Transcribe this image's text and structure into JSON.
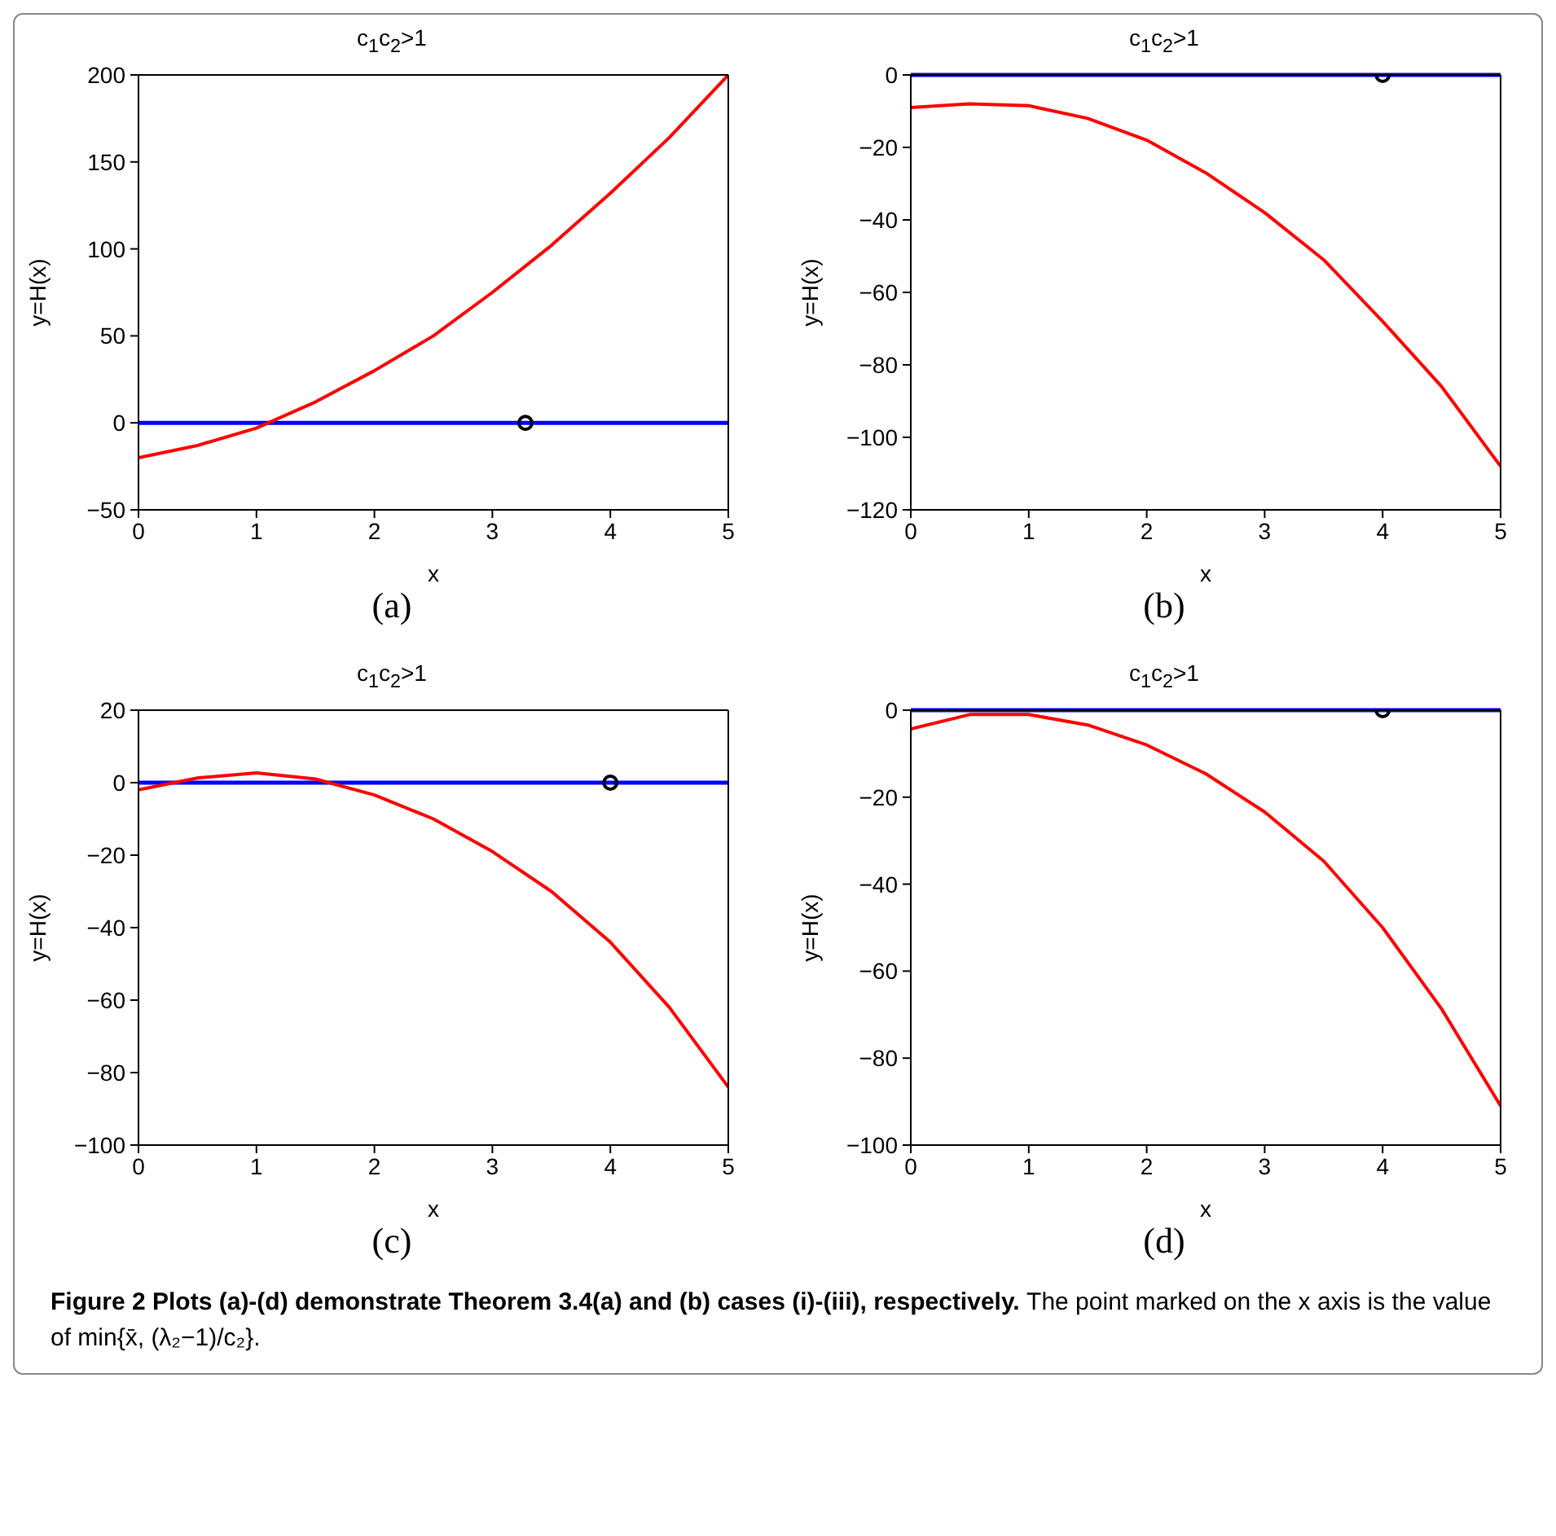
{
  "chart_data": [
    {
      "type": "line",
      "title": "c$_{1}$c$_{2}$>1",
      "subtitle": "(a)",
      "xlabel": "x",
      "ylabel": "y=H(x)",
      "xlim": [
        0,
        5
      ],
      "xticks": [
        0,
        1,
        2,
        3,
        4,
        5
      ],
      "ylim": [
        -50,
        200
      ],
      "yticks": [
        -50,
        0,
        50,
        100,
        150,
        200
      ],
      "grid": false,
      "ref_lines": [
        {
          "axis": "y",
          "value": 0,
          "color": "#0000ff"
        }
      ],
      "series": [
        {
          "type": "line",
          "color": "#ff0000",
          "marker": "none",
          "x": [
            0,
            0.5,
            1,
            1.5,
            2,
            2.5,
            3,
            3.5,
            4,
            4.5,
            5
          ],
          "values": [
            -20,
            -13,
            -3,
            12,
            30,
            50,
            75,
            102,
            132,
            164,
            200
          ]
        },
        {
          "type": "scatter",
          "color": "#000000",
          "marker": "circle",
          "x": [
            3.28
          ],
          "values": [
            0
          ]
        }
      ]
    },
    {
      "type": "line",
      "title": "c$_{1}$c$_{2}$>1",
      "subtitle": "(b)",
      "xlabel": "x",
      "ylabel": "y=H(x)",
      "xlim": [
        0,
        5
      ],
      "xticks": [
        0,
        1,
        2,
        3,
        4,
        5
      ],
      "ylim": [
        -120,
        0
      ],
      "yticks": [
        -120,
        -100,
        -80,
        -60,
        -40,
        -20,
        0
      ],
      "grid": false,
      "ref_lines": [
        {
          "axis": "y",
          "value": 0,
          "color": "#0000ff"
        }
      ],
      "series": [
        {
          "type": "line",
          "color": "#ff0000",
          "marker": "none",
          "x": [
            0,
            0.5,
            1,
            1.5,
            2,
            2.5,
            3,
            3.5,
            4,
            4.5,
            5
          ],
          "values": [
            -9,
            -8,
            -8.5,
            -12,
            -18,
            -27,
            -38,
            -51,
            -68,
            -86,
            -108
          ]
        },
        {
          "type": "scatter",
          "color": "#000000",
          "marker": "circle",
          "x": [
            4
          ],
          "values": [
            0
          ]
        }
      ]
    },
    {
      "type": "line",
      "title": "c$_{1}$c$_{2}$>1",
      "subtitle": "(c)",
      "xlabel": "x",
      "ylabel": "y=H(x)",
      "xlim": [
        0,
        5
      ],
      "xticks": [
        0,
        1,
        2,
        3,
        4,
        5
      ],
      "ylim": [
        -100,
        20
      ],
      "yticks": [
        -100,
        -80,
        -60,
        -40,
        -20,
        0,
        20
      ],
      "grid": false,
      "ref_lines": [
        {
          "axis": "y",
          "value": 0,
          "color": "#0000ff"
        }
      ],
      "series": [
        {
          "type": "line",
          "color": "#ff0000",
          "marker": "none",
          "x": [
            0,
            0.5,
            1,
            1.5,
            2,
            2.5,
            3,
            3.5,
            4,
            4.5,
            5
          ],
          "values": [
            -2,
            1.3,
            2.7,
            1,
            -3.4,
            -10,
            -19,
            -30,
            -44,
            -62,
            -84
          ]
        },
        {
          "type": "scatter",
          "color": "#000000",
          "marker": "circle",
          "x": [
            4
          ],
          "values": [
            0
          ]
        }
      ]
    },
    {
      "type": "line",
      "title": "c$_{1}$c$_{2}$>1",
      "subtitle": "(d)",
      "xlabel": "x",
      "ylabel": "y=H(x)",
      "xlim": [
        0,
        5
      ],
      "xticks": [
        0,
        1,
        2,
        3,
        4,
        5
      ],
      "ylim": [
        -100,
        0
      ],
      "yticks": [
        -100,
        -80,
        -60,
        -40,
        -20,
        0
      ],
      "grid": false,
      "ref_lines": [
        {
          "axis": "y",
          "value": 0,
          "color": "#0000ff"
        }
      ],
      "annotations": [
        "Figure 2 Plots (a)-(d) demonstrate Theorem 3.4(a) and (b) cases (i)-(iii), respectively.",
        "The point marked on the x axis is the value of min{x̄, (λ₂−1)/c₂}."
      ],
      "series": [
        {
          "type": "line",
          "color": "#ff0000",
          "marker": "none",
          "x": [
            0,
            0.5,
            1,
            1.5,
            2,
            2.5,
            3,
            3.5,
            4,
            4.5,
            5
          ],
          "values": [
            -4.3,
            -1,
            -1,
            -3.4,
            -8,
            -14.6,
            -23.4,
            -34.7,
            -50,
            -68.7,
            -91
          ]
        },
        {
          "type": "scatter",
          "color": "#000000",
          "marker": "circle",
          "x": [
            4
          ],
          "values": [
            0
          ]
        }
      ]
    }
  ]
}
